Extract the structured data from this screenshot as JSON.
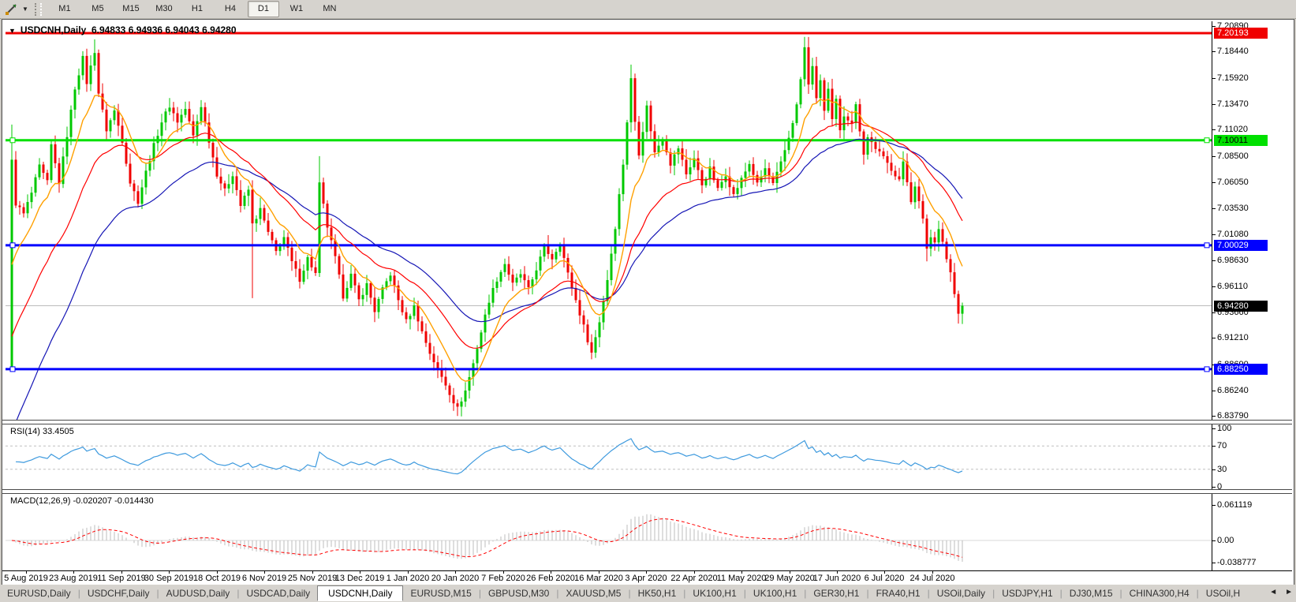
{
  "toolbar": {
    "timeframes": [
      "M1",
      "M5",
      "M15",
      "M30",
      "H1",
      "H4",
      "D1",
      "W1",
      "MN"
    ],
    "active_timeframe": "D1",
    "dropdown_caret": "▼"
  },
  "chart_window": {
    "title": {
      "symbol": "USDCNH,Daily",
      "open": "6.94833",
      "high": "6.94936",
      "low": "6.94043",
      "close": "6.94280",
      "caret": "▼"
    }
  },
  "main_chart": {
    "price_ticks": [
      "7.20890",
      "7.18440",
      "7.15920",
      "7.13470",
      "7.11020",
      "7.08500",
      "7.06050",
      "7.03530",
      "7.01080",
      "6.98630",
      "6.96110",
      "6.93660",
      "6.91210",
      "6.88690",
      "6.86240",
      "6.83790"
    ],
    "badges": [
      {
        "value": "7.20193",
        "bg": "#F00000",
        "fg": "#FFFFFF"
      },
      {
        "value": "7.10011",
        "bg": "#00E000",
        "fg": "#000000"
      },
      {
        "value": "7.00029",
        "bg": "#0000FF",
        "fg": "#FFFFFF"
      },
      {
        "value": "6.94280",
        "bg": "#000000",
        "fg": "#FFFFFF"
      },
      {
        "value": "6.88250",
        "bg": "#0000FF",
        "fg": "#FFFFFF"
      }
    ]
  },
  "rsi_panel": {
    "label": "RSI(14) 33.4505",
    "ticks": [
      "100",
      "70",
      "30",
      "0"
    ]
  },
  "macd_panel": {
    "label": "MACD(12,26,9) -0.020207 -0.014430",
    "ticks": [
      "0.061119",
      "0.00",
      "-0.038777"
    ]
  },
  "date_axis": {
    "labels": [
      "5 Aug 2019",
      "23 Aug 2019",
      "11 Sep 2019",
      "30 Sep 2019",
      "18 Oct 2019",
      "6 Nov 2019",
      "25 Nov 2019",
      "13 Dec 2019",
      "1 Jan 2020",
      "20 Jan 2020",
      "7 Feb 2020",
      "26 Feb 2020",
      "16 Mar 2020",
      "3 Apr 2020",
      "22 Apr 2020",
      "11 May 2020",
      "29 May 2020",
      "17 Jun 2020",
      "6 Jul 2020",
      "24 Jul 2020"
    ]
  },
  "tabbar": {
    "tabs": [
      "EURUSD,Daily",
      "USDCHF,Daily",
      "AUDUSD,Daily",
      "USDCAD,Daily",
      "USDCNH,Daily",
      "EURUSD,M15",
      "GBPUSD,M30",
      "XAUUSD,M5",
      "HK50,H1",
      "UK100,H1",
      "UK100,H1",
      "GER30,H1",
      "FRA40,H1",
      "USOil,Daily",
      "USDJPY,H1",
      "DJ30,M15",
      "CHINA300,H4",
      "USOil,H"
    ],
    "active_index": 4,
    "scroll_left": "◄",
    "scroll_right": "►"
  },
  "chart_data": {
    "type": "candlestick",
    "symbol": "USDCNH",
    "timeframe": "Daily",
    "current_ohlc": {
      "open": 6.94833,
      "high": 6.94936,
      "low": 6.94043,
      "close": 6.9428
    },
    "y_axis": {
      "min": 6.8379,
      "max": 7.2089,
      "ticks": [
        7.2089,
        7.1844,
        7.1592,
        7.1347,
        7.1102,
        7.085,
        7.0605,
        7.0353,
        7.0108,
        6.9863,
        6.9611,
        6.9366,
        6.9121,
        6.8869,
        6.8624,
        6.8379
      ]
    },
    "x_axis": {
      "labels": [
        "5 Aug 2019",
        "23 Aug 2019",
        "11 Sep 2019",
        "30 Sep 2019",
        "18 Oct 2019",
        "6 Nov 2019",
        "25 Nov 2019",
        "13 Dec 2019",
        "1 Jan 2020",
        "20 Jan 2020",
        "7 Feb 2020",
        "26 Feb 2020",
        "16 Mar 2020",
        "3 Apr 2020",
        "22 Apr 2020",
        "11 May 2020",
        "29 May 2020",
        "17 Jun 2020",
        "6 Jul 2020",
        "24 Jul 2020"
      ]
    },
    "horizontal_lines": [
      {
        "price": 7.20193,
        "color": "#F00000",
        "width": 3
      },
      {
        "price": 7.10011,
        "color": "#00E000",
        "width": 3
      },
      {
        "price": 7.00029,
        "color": "#0000FF",
        "width": 3
      },
      {
        "price": 6.8825,
        "color": "#0000FF",
        "width": 3
      }
    ],
    "current_price_line": {
      "price": 6.9428,
      "color": "#BBBBBB"
    },
    "colors": {
      "up": "#00C800",
      "down": "#F00000",
      "ma_fast": "#FFA000",
      "ma_mid": "#FF0000",
      "ma_slow": "#1515B5",
      "rsi": "#3E9ADE",
      "macd_hist": "#BDBDBD",
      "macd_signal": "#FF0000"
    },
    "close_path_anchors": [
      [
        0,
        7.08
      ],
      [
        1,
        7.04
      ],
      [
        3,
        7.03
      ],
      [
        5,
        7.05
      ],
      [
        7,
        7.075
      ],
      [
        9,
        7.06
      ],
      [
        10,
        7.095
      ],
      [
        12,
        7.06
      ],
      [
        14,
        7.105
      ],
      [
        16,
        7.15
      ],
      [
        18,
        7.178
      ],
      [
        19,
        7.155
      ],
      [
        21,
        7.185
      ],
      [
        22,
        7.145
      ],
      [
        24,
        7.11
      ],
      [
        26,
        7.128
      ],
      [
        28,
        7.1
      ],
      [
        30,
        7.06
      ],
      [
        32,
        7.042
      ],
      [
        34,
        7.07
      ],
      [
        36,
        7.095
      ],
      [
        38,
        7.118
      ],
      [
        40,
        7.133
      ],
      [
        42,
        7.118
      ],
      [
        44,
        7.13
      ],
      [
        46,
        7.104
      ],
      [
        48,
        7.133
      ],
      [
        50,
        7.1
      ],
      [
        52,
        7.068
      ],
      [
        54,
        7.052
      ],
      [
        56,
        7.068
      ],
      [
        58,
        7.038
      ],
      [
        60,
        7.053
      ],
      [
        61,
        7.02
      ],
      [
        63,
        7.034
      ],
      [
        65,
        7.012
      ],
      [
        67,
        6.994
      ],
      [
        69,
        7.008
      ],
      [
        71,
        6.984
      ],
      [
        73,
        6.968
      ],
      [
        75,
        6.988
      ],
      [
        77,
        6.973
      ],
      [
        78,
        7.058
      ],
      [
        80,
        7.018
      ],
      [
        82,
        6.988
      ],
      [
        84,
        6.952
      ],
      [
        86,
        6.972
      ],
      [
        88,
        6.948
      ],
      [
        90,
        6.963
      ],
      [
        92,
        6.938
      ],
      [
        94,
        6.958
      ],
      [
        96,
        6.973
      ],
      [
        98,
        6.948
      ],
      [
        100,
        6.928
      ],
      [
        102,
        6.942
      ],
      [
        104,
        6.918
      ],
      [
        106,
        6.898
      ],
      [
        108,
        6.882
      ],
      [
        110,
        6.868
      ],
      [
        112,
        6.852
      ],
      [
        113,
        6.845
      ],
      [
        115,
        6.862
      ],
      [
        117,
        6.888
      ],
      [
        119,
        6.918
      ],
      [
        121,
        6.948
      ],
      [
        123,
        6.968
      ],
      [
        125,
        6.983
      ],
      [
        127,
        6.963
      ],
      [
        129,
        6.973
      ],
      [
        131,
        6.958
      ],
      [
        133,
        6.978
      ],
      [
        135,
        6.998
      ],
      [
        137,
        6.988
      ],
      [
        139,
        7.003
      ],
      [
        141,
        6.973
      ],
      [
        143,
        6.948
      ],
      [
        145,
        6.923
      ],
      [
        147,
        6.898
      ],
      [
        149,
        6.928
      ],
      [
        151,
        6.968
      ],
      [
        153,
        7.018
      ],
      [
        155,
        7.078
      ],
      [
        157,
        7.158
      ],
      [
        158,
        7.118
      ],
      [
        159,
        7.088
      ],
      [
        161,
        7.132
      ],
      [
        163,
        7.088
      ],
      [
        165,
        7.103
      ],
      [
        167,
        7.078
      ],
      [
        169,
        7.093
      ],
      [
        171,
        7.068
      ],
      [
        173,
        7.083
      ],
      [
        175,
        7.058
      ],
      [
        177,
        7.073
      ],
      [
        179,
        7.053
      ],
      [
        181,
        7.068
      ],
      [
        183,
        7.048
      ],
      [
        185,
        7.063
      ],
      [
        187,
        7.078
      ],
      [
        189,
        7.058
      ],
      [
        191,
        7.073
      ],
      [
        193,
        7.058
      ],
      [
        195,
        7.078
      ],
      [
        197,
        7.103
      ],
      [
        199,
        7.133
      ],
      [
        200,
        7.158
      ],
      [
        201,
        7.188
      ],
      [
        202,
        7.152
      ],
      [
        203,
        7.172
      ],
      [
        204,
        7.138
      ],
      [
        205,
        7.158
      ],
      [
        206,
        7.128
      ],
      [
        207,
        7.148
      ],
      [
        208,
        7.118
      ],
      [
        209,
        7.138
      ],
      [
        210,
        7.108
      ],
      [
        211,
        7.124
      ],
      [
        213,
        7.118
      ],
      [
        214,
        7.133
      ],
      [
        216,
        7.088
      ],
      [
        217,
        7.103
      ],
      [
        219,
        7.093
      ],
      [
        221,
        7.083
      ],
      [
        223,
        7.073
      ],
      [
        225,
        7.063
      ],
      [
        226,
        7.078
      ],
      [
        228,
        7.043
      ],
      [
        229,
        7.058
      ],
      [
        231,
        7.024
      ],
      [
        232,
        6.998
      ],
      [
        233,
        7.008
      ],
      [
        234,
        7.003
      ],
      [
        235,
        7.018
      ],
      [
        236,
        7.004
      ],
      [
        237,
        6.988
      ],
      [
        238,
        6.974
      ],
      [
        239,
        6.954
      ],
      [
        240,
        6.934
      ],
      [
        241,
        6.9428
      ]
    ],
    "wick_overrides": {
      "0": [
        6.88,
        7.115
      ],
      "21": [
        null,
        7.196
      ],
      "61": [
        6.95,
        null
      ],
      "78": [
        null,
        7.085
      ],
      "113": [
        6.838,
        null
      ],
      "157": [
        null,
        7.172
      ],
      "201": [
        null,
        7.1965
      ],
      "232": [
        6.985,
        null
      ],
      "240": [
        6.926,
        null
      ]
    },
    "first_open": 6.885,
    "moving_averages": [
      {
        "name": "fast",
        "color": "#FFA000",
        "alpha": 0.18,
        "seed": 6.96
      },
      {
        "name": "mid",
        "color": "#FF0000",
        "alpha": 0.075,
        "seed": 6.9
      },
      {
        "name": "slow",
        "color": "#1515B5",
        "alpha": 0.045,
        "seed": 6.81
      }
    ],
    "rsi": {
      "period": 14,
      "last": 33.4505,
      "levels": [
        70,
        30
      ],
      "range": [
        0,
        100
      ]
    },
    "macd": {
      "fast": 12,
      "slow": 26,
      "signal_period": 9,
      "last_main": -0.020207,
      "last_signal": -0.01443,
      "scale_top": 0.061119,
      "scale_bottom": -0.038777
    }
  }
}
